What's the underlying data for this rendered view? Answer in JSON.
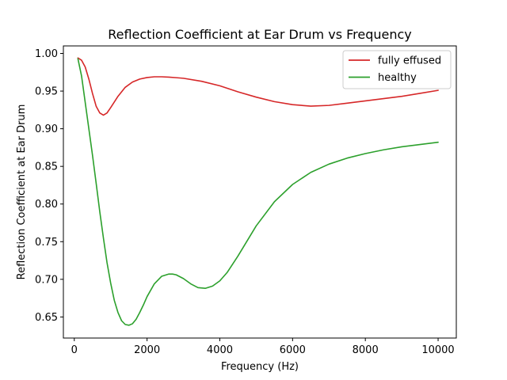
{
  "chart_data": {
    "type": "line",
    "title": "Reflection Coefficient at Ear Drum vs Frequency",
    "xlabel": "Frequency (Hz)",
    "ylabel": "Reflection Coefficient at Ear Drum",
    "xlim": [
      -300,
      10500
    ],
    "ylim": [
      0.622,
      1.01
    ],
    "x_ticks": [
      0,
      2000,
      4000,
      6000,
      8000,
      10000
    ],
    "x_tick_labels": [
      "0",
      "2000",
      "4000",
      "6000",
      "8000",
      "10000"
    ],
    "y_ticks": [
      0.65,
      0.7,
      0.75,
      0.8,
      0.85,
      0.9,
      0.95,
      1.0
    ],
    "y_tick_labels": [
      "0.65",
      "0.70",
      "0.75",
      "0.80",
      "0.85",
      "0.90",
      "0.95",
      "1.00"
    ],
    "grid": false,
    "legend_position": "top-right",
    "series": [
      {
        "name": "fully effused",
        "color": "#d62728",
        "x": [
          100,
          200,
          300,
          400,
          500,
          600,
          700,
          800,
          900,
          1000,
          1200,
          1400,
          1600,
          1800,
          2000,
          2200,
          2400,
          2600,
          2800,
          3000,
          3500,
          4000,
          4500,
          5000,
          5500,
          6000,
          6500,
          7000,
          7500,
          8000,
          8500,
          9000,
          9500,
          10000
        ],
        "y": [
          0.994,
          0.991,
          0.982,
          0.966,
          0.947,
          0.93,
          0.921,
          0.918,
          0.921,
          0.928,
          0.943,
          0.955,
          0.962,
          0.966,
          0.968,
          0.969,
          0.969,
          0.9685,
          0.9678,
          0.967,
          0.963,
          0.957,
          0.949,
          0.942,
          0.936,
          0.932,
          0.93,
          0.931,
          0.934,
          0.937,
          0.94,
          0.943,
          0.947,
          0.951
        ]
      },
      {
        "name": "healthy",
        "color": "#2ca02c",
        "x": [
          100,
          200,
          300,
          400,
          500,
          600,
          700,
          800,
          900,
          1000,
          1100,
          1200,
          1300,
          1400,
          1500,
          1600,
          1700,
          1800,
          1900,
          2000,
          2200,
          2400,
          2600,
          2700,
          2800,
          3000,
          3200,
          3400,
          3600,
          3800,
          4000,
          4200,
          4500,
          5000,
          5500,
          6000,
          6500,
          7000,
          7500,
          8000,
          8500,
          9000,
          9500,
          10000
        ],
        "y": [
          0.993,
          0.97,
          0.935,
          0.9,
          0.865,
          0.828,
          0.79,
          0.755,
          0.722,
          0.695,
          0.672,
          0.656,
          0.645,
          0.64,
          0.639,
          0.641,
          0.647,
          0.656,
          0.666,
          0.677,
          0.694,
          0.704,
          0.707,
          0.707,
          0.706,
          0.701,
          0.694,
          0.689,
          0.688,
          0.691,
          0.698,
          0.709,
          0.731,
          0.771,
          0.803,
          0.826,
          0.842,
          0.853,
          0.861,
          0.867,
          0.872,
          0.876,
          0.879,
          0.882
        ]
      }
    ]
  }
}
